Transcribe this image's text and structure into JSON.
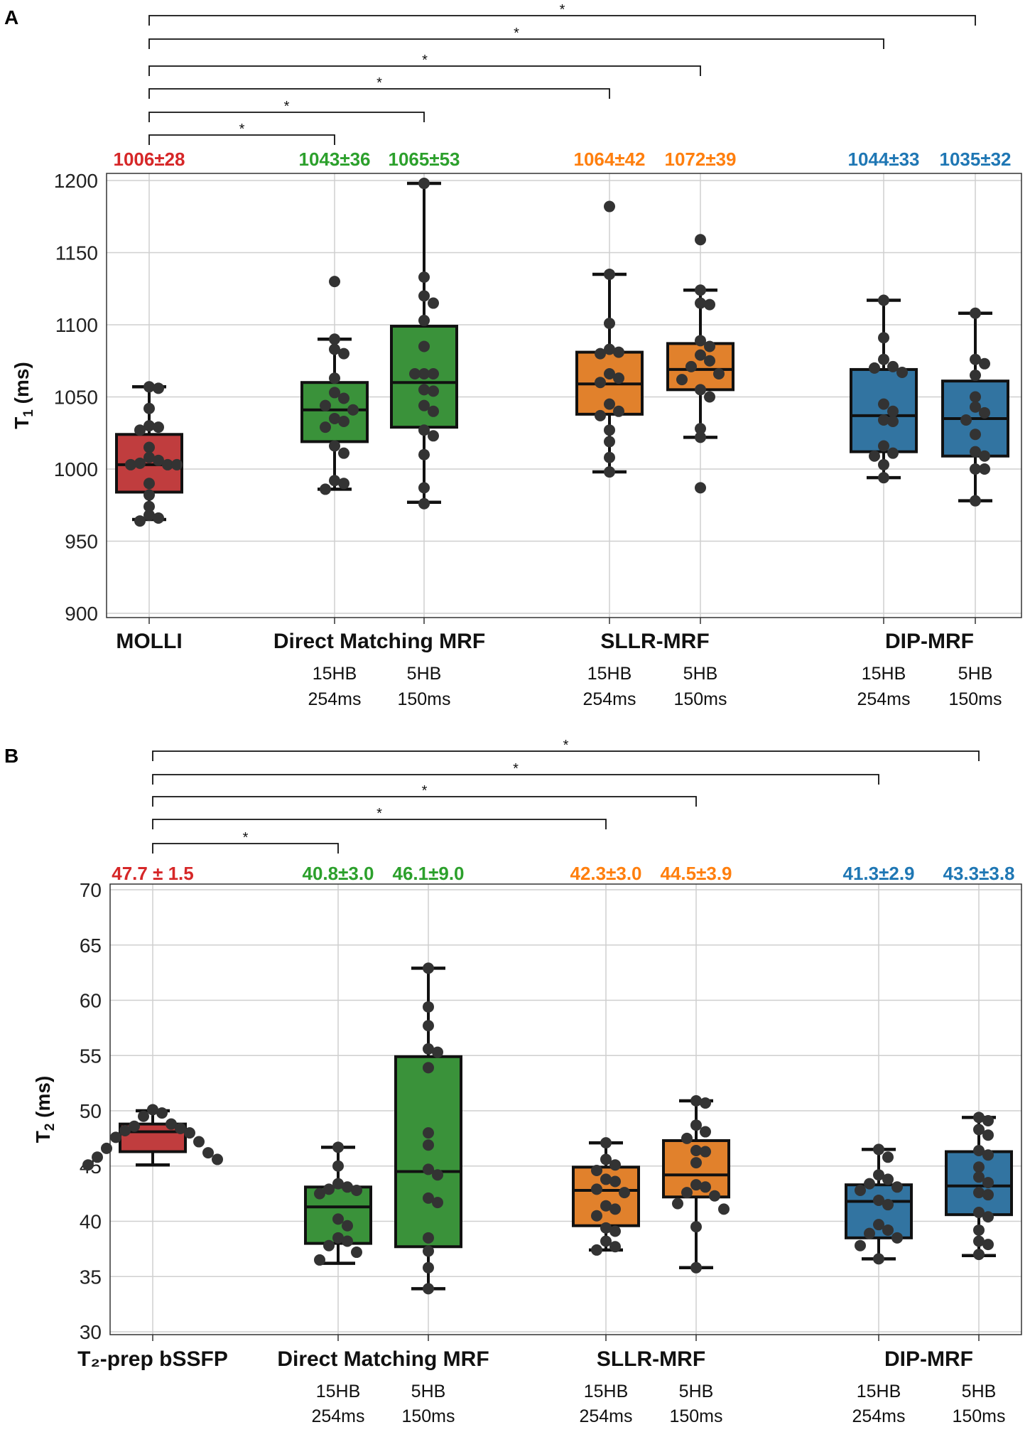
{
  "chart_data": [
    {
      "type": "box",
      "panel_label": "A",
      "ylabel_main": "T",
      "ylabel_sub": "1",
      "ylabel_unit": " (ms)",
      "ylim": [
        900,
        1200
      ],
      "yticks": [
        900,
        950,
        1000,
        1050,
        1100,
        1150,
        1200
      ],
      "grid": true,
      "groups": [
        {
          "label": "MOLLI",
          "boxes": [
            0
          ]
        },
        {
          "label": "Direct Matching MRF",
          "boxes": [
            1,
            2
          ]
        },
        {
          "label": "SLLR-MRF",
          "boxes": [
            3,
            4
          ]
        },
        {
          "label": "DIP-MRF",
          "boxes": [
            5,
            6
          ]
        }
      ],
      "boxes": [
        {
          "name": "MOLLI",
          "sub": [],
          "stat_label": "1006±28",
          "color": "#c03d3e",
          "text_color": "#d62728",
          "whisker_low": 965,
          "q1": 984,
          "median": 1003,
          "q3": 1024,
          "whisker_high": 1057,
          "points": [
            1057,
            1056,
            1042,
            1030,
            1029,
            1027,
            1015,
            1008,
            1006,
            1004,
            1003,
            1003,
            1003,
            990,
            982,
            974,
            968,
            966,
            964
          ]
        },
        {
          "name": "Direct Matching MRF 15HB 254ms",
          "sub": [
            "15HB",
            "254ms"
          ],
          "stat_label": "1043±36",
          "color": "#3a923a",
          "text_color": "#2ca02c",
          "whisker_low": 986,
          "q1": 1019,
          "median": 1041,
          "q3": 1060,
          "whisker_high": 1090,
          "points": [
            1130,
            1090,
            1083,
            1080,
            1063,
            1053,
            1049,
            1044,
            1041,
            1035,
            1033,
            1029,
            1016,
            1011,
            992,
            990,
            986
          ]
        },
        {
          "name": "Direct Matching MRF 5HB 150ms",
          "sub": [
            "5HB",
            "150ms"
          ],
          "stat_label": "1065±53",
          "color": "#3a923a",
          "text_color": "#2ca02c",
          "whisker_low": 977,
          "q1": 1029,
          "median": 1060,
          "q3": 1099,
          "whisker_high": 1198,
          "points": [
            1198,
            1133,
            1120,
            1115,
            1103,
            1085,
            1066,
            1066,
            1066,
            1055,
            1054,
            1044,
            1040,
            1027,
            1023,
            1010,
            987,
            976
          ]
        },
        {
          "name": "SLLR-MRF 15HB 254ms",
          "sub": [
            "15HB",
            "254ms"
          ],
          "stat_label": "1064±42",
          "color": "#e1812c",
          "text_color": "#ff7f0e",
          "whisker_low": 998,
          "q1": 1038,
          "median": 1059,
          "q3": 1081,
          "whisker_high": 1135,
          "points": [
            1182,
            1135,
            1101,
            1083,
            1081,
            1080,
            1066,
            1063,
            1060,
            1045,
            1040,
            1037,
            1027,
            1019,
            1008,
            998
          ]
        },
        {
          "name": "SLLR-MRF 5HB 150ms",
          "sub": [
            "5HB",
            "150ms"
          ],
          "stat_label": "1072±39",
          "color": "#e1812c",
          "text_color": "#ff7f0e",
          "whisker_low": 1022,
          "q1": 1055,
          "median": 1069,
          "q3": 1087,
          "whisker_high": 1124,
          "points": [
            1159,
            1124,
            1115,
            1114,
            1089,
            1085,
            1079,
            1075,
            1071,
            1066,
            1062,
            1055,
            1050,
            1028,
            1022,
            987
          ]
        },
        {
          "name": "DIP-MRF 15HB 254ms",
          "sub": [
            "15HB",
            "254ms"
          ],
          "stat_label": "1044±33",
          "color": "#3274a1",
          "text_color": "#1f77b4",
          "whisker_low": 994,
          "q1": 1012,
          "median": 1037,
          "q3": 1069,
          "whisker_high": 1117,
          "points": [
            1117,
            1091,
            1076,
            1071,
            1070,
            1067,
            1045,
            1040,
            1034,
            1033,
            1016,
            1011,
            1009,
            1003,
            994
          ]
        },
        {
          "name": "DIP-MRF 5HB 150ms",
          "sub": [
            "5HB",
            "150ms"
          ],
          "stat_label": "1035±32",
          "color": "#3274a1",
          "text_color": "#1f77b4",
          "whisker_low": 978,
          "q1": 1009,
          "median": 1035,
          "q3": 1061,
          "whisker_high": 1108,
          "points": [
            1108,
            1076,
            1073,
            1065,
            1050,
            1043,
            1039,
            1034,
            1024,
            1012,
            1009,
            1000,
            1000,
            978
          ]
        }
      ],
      "significance": [
        {
          "from": 0,
          "to": 1,
          "label": "*"
        },
        {
          "from": 0,
          "to": 2,
          "label": "*"
        },
        {
          "from": 0,
          "to": 3,
          "label": "*"
        },
        {
          "from": 0,
          "to": 4,
          "label": "*"
        },
        {
          "from": 0,
          "to": 5,
          "label": "*"
        },
        {
          "from": 0,
          "to": 6,
          "label": "*"
        }
      ]
    },
    {
      "type": "box",
      "panel_label": "B",
      "ylabel_main": "T",
      "ylabel_sub": "2",
      "ylabel_unit": " (ms)",
      "ylim": [
        30,
        70
      ],
      "yticks": [
        30,
        35,
        40,
        45,
        50,
        55,
        60,
        65,
        70
      ],
      "grid": true,
      "groups": [
        {
          "label": "T₂-prep bSSFP",
          "boxes": [
            0
          ]
        },
        {
          "label": "Direct Matching MRF",
          "boxes": [
            1,
            2
          ]
        },
        {
          "label": "SLLR-MRF",
          "boxes": [
            3,
            4
          ]
        },
        {
          "label": "DIP-MRF",
          "boxes": [
            5,
            6
          ]
        }
      ],
      "boxes": [
        {
          "name": "T2-prep bSSFP",
          "sub": [],
          "stat_label": "47.7 ± 1.5",
          "color": "#c03d3e",
          "text_color": "#d62728",
          "whisker_low": 45.1,
          "q1": 46.3,
          "median": 48.1,
          "q3": 48.8,
          "whisker_high": 50.0,
          "points": [
            50.1,
            49.8,
            49.5,
            48.8,
            48.6,
            48.4,
            48.2,
            48.0,
            47.6,
            47.2,
            46.6,
            46.2,
            45.8,
            45.6,
            45.1
          ]
        },
        {
          "name": "Direct Matching MRF 15HB 254ms",
          "sub": [
            "15HB",
            "254ms"
          ],
          "stat_label": "40.8±3.0",
          "color": "#3a923a",
          "text_color": "#2ca02c",
          "whisker_low": 36.2,
          "q1": 38.0,
          "median": 41.3,
          "q3": 43.1,
          "whisker_high": 46.7,
          "points": [
            46.7,
            45.0,
            43.4,
            43.1,
            42.9,
            42.8,
            42.5,
            40.2,
            39.6,
            38.5,
            38.2,
            37.8,
            37.2,
            36.5
          ]
        },
        {
          "name": "Direct Matching MRF 5HB 150ms",
          "sub": [
            "5HB",
            "150ms"
          ],
          "stat_label": "46.1±9.0",
          "color": "#3a923a",
          "text_color": "#2ca02c",
          "whisker_low": 33.9,
          "q1": 37.7,
          "median": 44.5,
          "q3": 54.9,
          "whisker_high": 62.9,
          "points": [
            62.9,
            59.4,
            57.7,
            55.6,
            55.3,
            53.9,
            48.0,
            46.9,
            44.7,
            44.2,
            42.1,
            41.7,
            38.5,
            37.3,
            35.8,
            33.9
          ]
        },
        {
          "name": "SLLR-MRF 15HB 254ms",
          "sub": [
            "15HB",
            "254ms"
          ],
          "stat_label": "42.3±3.0",
          "color": "#e1812c",
          "text_color": "#ff7f0e",
          "whisker_low": 37.4,
          "q1": 39.6,
          "median": 42.8,
          "q3": 44.9,
          "whisker_high": 47.1,
          "points": [
            47.1,
            45.6,
            45.1,
            44.6,
            43.8,
            43.6,
            42.9,
            42.6,
            41.4,
            41.1,
            40.5,
            39.4,
            39.1,
            38.2,
            37.7,
            37.4
          ]
        },
        {
          "name": "SLLR-MRF 5HB 150ms",
          "sub": [
            "5HB",
            "150ms"
          ],
          "stat_label": "44.5±3.9",
          "color": "#e1812c",
          "text_color": "#ff7f0e",
          "whisker_low": 35.8,
          "q1": 42.2,
          "median": 44.2,
          "q3": 47.3,
          "whisker_high": 50.9,
          "points": [
            50.9,
            50.7,
            48.7,
            48.1,
            47.5,
            46.4,
            46.3,
            45.3,
            43.3,
            43.1,
            42.6,
            42.3,
            41.6,
            41.1,
            39.5,
            35.8
          ]
        },
        {
          "name": "DIP-MRF 15HB 254ms",
          "sub": [
            "15HB",
            "254ms"
          ],
          "stat_label": "41.3±2.9",
          "color": "#3274a1",
          "text_color": "#1f77b4",
          "whisker_low": 36.6,
          "q1": 38.5,
          "median": 41.8,
          "q3": 43.3,
          "whisker_high": 46.5,
          "points": [
            46.5,
            45.8,
            44.2,
            43.8,
            43.4,
            43.1,
            42.8,
            41.9,
            41.5,
            39.7,
            39.2,
            38.9,
            38.5,
            37.8,
            36.6
          ]
        },
        {
          "name": "DIP-MRF 5HB 150ms",
          "sub": [
            "5HB",
            "150ms"
          ],
          "stat_label": "43.3±3.8",
          "color": "#3274a1",
          "text_color": "#1f77b4",
          "whisker_low": 36.9,
          "q1": 40.6,
          "median": 43.2,
          "q3": 46.3,
          "whisker_high": 49.4,
          "points": [
            49.4,
            49.1,
            48.3,
            47.8,
            46.4,
            46.0,
            44.9,
            44.0,
            43.5,
            42.6,
            42.4,
            40.8,
            40.4,
            39.2,
            38.2,
            37.9,
            37.0
          ]
        }
      ],
      "significance": [
        {
          "from": 0,
          "to": 1,
          "label": "*"
        },
        {
          "from": 0,
          "to": 3,
          "label": "*"
        },
        {
          "from": 0,
          "to": 4,
          "label": "*"
        },
        {
          "from": 0,
          "to": 5,
          "label": "*"
        },
        {
          "from": 0,
          "to": 6,
          "label": "*"
        }
      ]
    }
  ]
}
